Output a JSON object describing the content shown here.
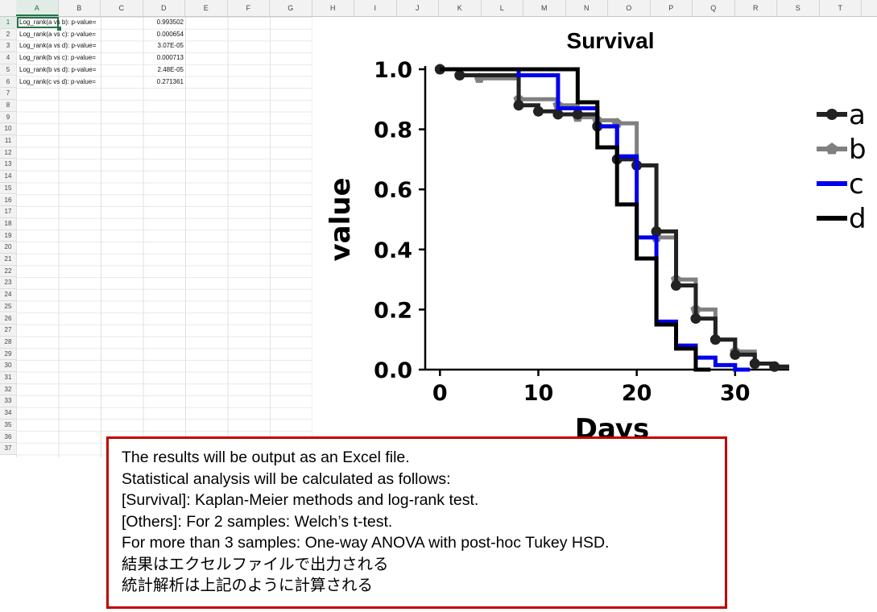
{
  "sheet": {
    "columns": [
      "A",
      "B",
      "C",
      "D",
      "E",
      "F",
      "G",
      "H",
      "I",
      "J",
      "K",
      "L",
      "M",
      "N",
      "O",
      "P",
      "Q",
      "R",
      "S",
      "T"
    ],
    "active_column": "A",
    "active_row": 1,
    "row_count": 37,
    "rows": [
      {
        "label": "Log_rank(a vs b): p-value=",
        "value": "0.993502"
      },
      {
        "label": "Log_rank(a vs c): p-value=",
        "value": "0.000654"
      },
      {
        "label": "Log_rank(a vs d): p-value=",
        "value": "3.07E-05"
      },
      {
        "label": "Log_rank(b vs c): p-value=",
        "value": "0.000713"
      },
      {
        "label": "Log_rank(b vs d): p-value=",
        "value": "2.48E-05"
      },
      {
        "label": "Log_rank(c vs d): p-value=",
        "value": "0.271361"
      }
    ]
  },
  "chart_data": {
    "type": "line",
    "title": "Survival",
    "xlabel": "Days",
    "ylabel": "value",
    "xlim": [
      -1.5,
      35.5
    ],
    "ylim": [
      0,
      1.0
    ],
    "xticks": [
      "0",
      "10",
      "20",
      "30"
    ],
    "xtick_values": [
      0,
      10,
      20,
      30
    ],
    "yticks": [
      "0.0",
      "0.2",
      "0.4",
      "0.6",
      "0.8",
      "1.0"
    ],
    "ytick_values": [
      0,
      0.2,
      0.4,
      0.6,
      0.8,
      1.0
    ],
    "legend_position": "right",
    "series": [
      {
        "name": "a",
        "color": "#222222",
        "marker": "circle",
        "steps": [
          [
            0,
            1.0
          ],
          [
            2,
            0.98
          ],
          [
            8,
            0.88
          ],
          [
            10,
            0.86
          ],
          [
            12,
            0.85
          ],
          [
            14,
            0.85
          ],
          [
            16,
            0.81
          ],
          [
            18,
            0.7
          ],
          [
            20,
            0.68
          ],
          [
            22,
            0.46
          ],
          [
            24,
            0.28
          ],
          [
            26,
            0.17
          ],
          [
            28,
            0.1
          ],
          [
            30,
            0.05
          ],
          [
            32,
            0.02
          ],
          [
            34,
            0.01
          ]
        ]
      },
      {
        "name": "b",
        "color": "#808080",
        "marker": "pentagon",
        "steps": [
          [
            0,
            1.0
          ],
          [
            2,
            0.98
          ],
          [
            4,
            0.97
          ],
          [
            8,
            0.9
          ],
          [
            12,
            0.88
          ],
          [
            14,
            0.84
          ],
          [
            16,
            0.83
          ],
          [
            18,
            0.82
          ],
          [
            20,
            0.68
          ],
          [
            22,
            0.44
          ],
          [
            24,
            0.3
          ],
          [
            26,
            0.2
          ],
          [
            28,
            0.1
          ],
          [
            30,
            0.06
          ],
          [
            32,
            0.02
          ],
          [
            34,
            0.01
          ]
        ]
      },
      {
        "name": "c",
        "color": "#0000ee",
        "marker": "none",
        "steps": [
          [
            0,
            1.0
          ],
          [
            8,
            0.98
          ],
          [
            12,
            0.87
          ],
          [
            16,
            0.81
          ],
          [
            18,
            0.71
          ],
          [
            20,
            0.44
          ],
          [
            22,
            0.16
          ],
          [
            24,
            0.08
          ],
          [
            26,
            0.04
          ],
          [
            28,
            0.015
          ],
          [
            30,
            0.0
          ]
        ]
      },
      {
        "name": "d",
        "color": "#000000",
        "marker": "none",
        "steps": [
          [
            0,
            1.0
          ],
          [
            12,
            1.0
          ],
          [
            14,
            0.89
          ],
          [
            16,
            0.74
          ],
          [
            18,
            0.55
          ],
          [
            20,
            0.37
          ],
          [
            22,
            0.15
          ],
          [
            24,
            0.07
          ],
          [
            26,
            0.0
          ]
        ]
      }
    ]
  },
  "note": {
    "lines": [
      "The results will be output as an Excel file.",
      "Statistical analysis will be calculated as follows:",
      "[Survival]: Kaplan-Meier methods and log-rank test.",
      "[Others]: For 2 samples: Welch’s t-test.",
      "For more than 3 samples: One-way ANOVA with post-hoc Tukey HSD.",
      "結果はエクセルファイルで出力される",
      "統計解析は上記のように計算される"
    ],
    "border_color": "#c00000"
  }
}
